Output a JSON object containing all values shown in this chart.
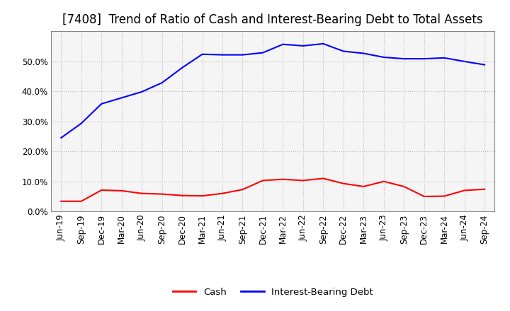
{
  "title": "[7408]  Trend of Ratio of Cash and Interest-Bearing Debt to Total Assets",
  "x_labels": [
    "Jun-19",
    "Sep-19",
    "Dec-19",
    "Mar-20",
    "Jun-20",
    "Sep-20",
    "Dec-20",
    "Mar-21",
    "Jun-21",
    "Sep-21",
    "Dec-21",
    "Mar-22",
    "Jun-22",
    "Sep-22",
    "Dec-22",
    "Mar-23",
    "Jun-23",
    "Sep-23",
    "Dec-23",
    "Mar-24",
    "Jun-24",
    "Sep-24"
  ],
  "cash": [
    0.034,
    0.034,
    0.071,
    0.069,
    0.06,
    0.058,
    0.053,
    0.052,
    0.06,
    0.073,
    0.103,
    0.107,
    0.103,
    0.11,
    0.093,
    0.083,
    0.1,
    0.083,
    0.05,
    0.051,
    0.07,
    0.074
  ],
  "debt": [
    0.245,
    0.293,
    0.358,
    0.378,
    0.398,
    0.428,
    0.478,
    0.523,
    0.521,
    0.521,
    0.528,
    0.556,
    0.551,
    0.558,
    0.533,
    0.526,
    0.513,
    0.508,
    0.508,
    0.511,
    0.499,
    0.488
  ],
  "cash_color": "#ff0000",
  "debt_color": "#0000ff",
  "grid_color": "#bbbbbb",
  "background_color": "#ffffff",
  "plot_bg_color": "#f5f5f5",
  "ylim": [
    0.0,
    0.6
  ],
  "yticks": [
    0.0,
    0.1,
    0.2,
    0.3,
    0.4,
    0.5
  ],
  "legend_cash": "Cash",
  "legend_debt": "Interest-Bearing Debt",
  "title_fontsize": 12,
  "axis_fontsize": 8.5,
  "legend_fontsize": 9.5
}
